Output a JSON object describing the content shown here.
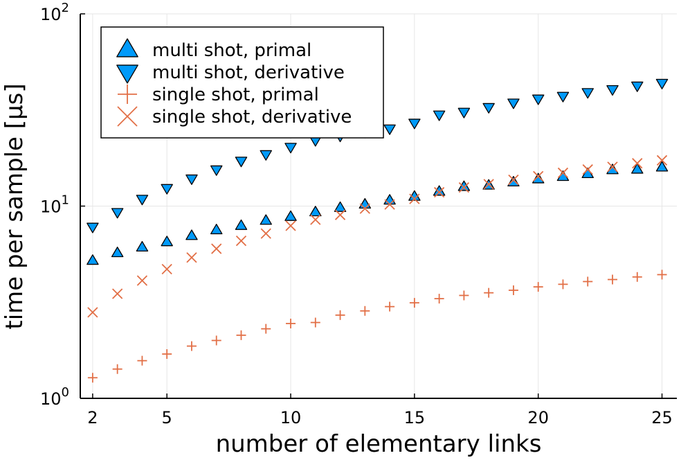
{
  "chart_data": {
    "type": "scatter",
    "xlabel": "number of elementary links",
    "ylabel": "time per sample [µs]",
    "xlim": [
      1.5,
      25.6
    ],
    "ylim": [
      1,
      100
    ],
    "yscale": "log10",
    "x_ticks": [
      {
        "value": 2,
        "label": "2"
      },
      {
        "value": 5,
        "label": "5"
      },
      {
        "value": 10,
        "label": "10"
      },
      {
        "value": 15,
        "label": "15"
      },
      {
        "value": 20,
        "label": "20"
      },
      {
        "value": 25,
        "label": "25"
      }
    ],
    "y_ticks": [
      {
        "value": 1,
        "base": "10",
        "exp": "0"
      },
      {
        "value": 10,
        "base": "10",
        "exp": "1"
      },
      {
        "value": 100,
        "base": "10",
        "exp": "2"
      }
    ],
    "grid": true,
    "legend_position": "top-left",
    "x": [
      2,
      3,
      4,
      5,
      6,
      7,
      8,
      9,
      10,
      11,
      12,
      13,
      14,
      15,
      16,
      17,
      18,
      19,
      20,
      21,
      22,
      23,
      24,
      25
    ],
    "series": [
      {
        "name": "multi shot, primal",
        "marker": "triangle-up",
        "color": "#009AFA",
        "values": [
          5.2,
          5.7,
          6.1,
          6.5,
          7.0,
          7.5,
          7.9,
          8.4,
          8.8,
          9.3,
          9.8,
          10.2,
          10.7,
          11.2,
          11.9,
          12.6,
          12.8,
          13.3,
          13.8,
          14.2,
          14.7,
          15.4,
          15.5,
          15.9
        ]
      },
      {
        "name": "multi shot, derivative",
        "marker": "triangle-down",
        "color": "#009AFA",
        "values": [
          7.8,
          9.3,
          10.9,
          12.4,
          13.9,
          15.5,
          17.2,
          18.6,
          20.3,
          22.0,
          23.2,
          24.3,
          25.3,
          27.1,
          29.9,
          30.9,
          32.7,
          34.5,
          36.2,
          37.4,
          39.1,
          40.5,
          42.3,
          43.7
        ]
      },
      {
        "name": "single shot, primal",
        "marker": "plus",
        "color": "#E26F46",
        "values": [
          1.28,
          1.42,
          1.57,
          1.7,
          1.87,
          2.0,
          2.13,
          2.3,
          2.45,
          2.48,
          2.71,
          2.85,
          3.0,
          3.14,
          3.3,
          3.43,
          3.54,
          3.65,
          3.8,
          3.92,
          4.05,
          4.15,
          4.28,
          4.4
        ]
      },
      {
        "name": "single shot, derivative",
        "marker": "cross",
        "color": "#E26F46",
        "values": [
          2.8,
          3.5,
          4.1,
          4.7,
          5.4,
          6.0,
          6.6,
          7.2,
          7.9,
          8.5,
          9.0,
          9.7,
          10.2,
          10.9,
          11.8,
          12.5,
          13.0,
          13.7,
          14.3,
          14.9,
          15.5,
          16.0,
          16.7,
          17.3
        ]
      }
    ]
  }
}
